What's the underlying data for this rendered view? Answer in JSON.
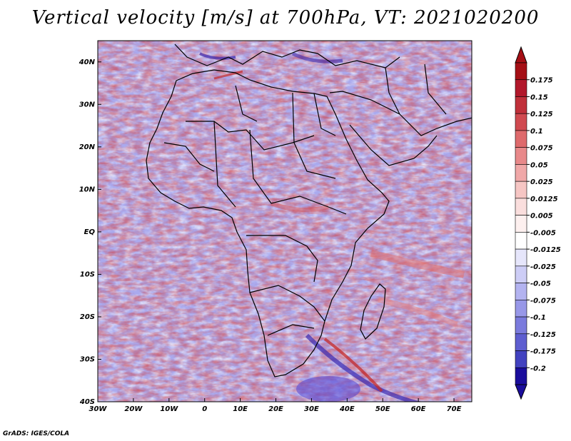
{
  "title": "Vertical velocity [m/s] at 700hPa, VT: 2021020200",
  "footer": "GrADS: IGES/COLA",
  "map": {
    "lon_range": [
      -30,
      75
    ],
    "lat_range": [
      -40,
      45
    ],
    "lat_ticks": [
      {
        "value": 40,
        "label": "40N"
      },
      {
        "value": 30,
        "label": "30N"
      },
      {
        "value": 20,
        "label": "20N"
      },
      {
        "value": 10,
        "label": "10N"
      },
      {
        "value": 0,
        "label": "EQ"
      },
      {
        "value": -10,
        "label": "10S"
      },
      {
        "value": -20,
        "label": "20S"
      },
      {
        "value": -30,
        "label": "30S"
      },
      {
        "value": -40,
        "label": "40S"
      }
    ],
    "lon_ticks": [
      {
        "value": -30,
        "label": "30W"
      },
      {
        "value": -20,
        "label": "20W"
      },
      {
        "value": -10,
        "label": "10W"
      },
      {
        "value": 0,
        "label": "0"
      },
      {
        "value": 10,
        "label": "10E"
      },
      {
        "value": 20,
        "label": "20E"
      },
      {
        "value": 30,
        "label": "30E"
      },
      {
        "value": 40,
        "label": "40E"
      },
      {
        "value": 50,
        "label": "50E"
      },
      {
        "value": 60,
        "label": "60E"
      },
      {
        "value": 70,
        "label": "70E"
      }
    ]
  },
  "colorbar": {
    "levels": [
      {
        "label": "0.175",
        "color": "#b2182b"
      },
      {
        "label": "0.15",
        "color": "#c0303a"
      },
      {
        "label": "0.125",
        "color": "#d04a50"
      },
      {
        "label": "0.1",
        "color": "#de6a6c"
      },
      {
        "label": "0.075",
        "color": "#e8898a"
      },
      {
        "label": "0.05",
        "color": "#f0a8a8"
      },
      {
        "label": "0.025",
        "color": "#f6c6c4"
      },
      {
        "label": "0.0125",
        "color": "#fadedd"
      },
      {
        "label": "0.005",
        "color": "#fdf0ef"
      },
      {
        "label": "-0.005",
        "color": "#ffffff"
      },
      {
        "label": "-0.0125",
        "color": "#e6e6fb"
      },
      {
        "label": "-0.025",
        "color": "#cdcdf6"
      },
      {
        "label": "-0.05",
        "color": "#b3b3f0"
      },
      {
        "label": "-0.075",
        "color": "#9898e8"
      },
      {
        "label": "-0.1",
        "color": "#7b7bdd"
      },
      {
        "label": "-0.125",
        "color": "#5e5ed0"
      },
      {
        "label": "-0.175",
        "color": "#4242c0"
      },
      {
        "label": "-0.2",
        "color": "#2424ad"
      }
    ],
    "top_color": "#a50f15",
    "bottom_color": "#1a0d9c"
  }
}
